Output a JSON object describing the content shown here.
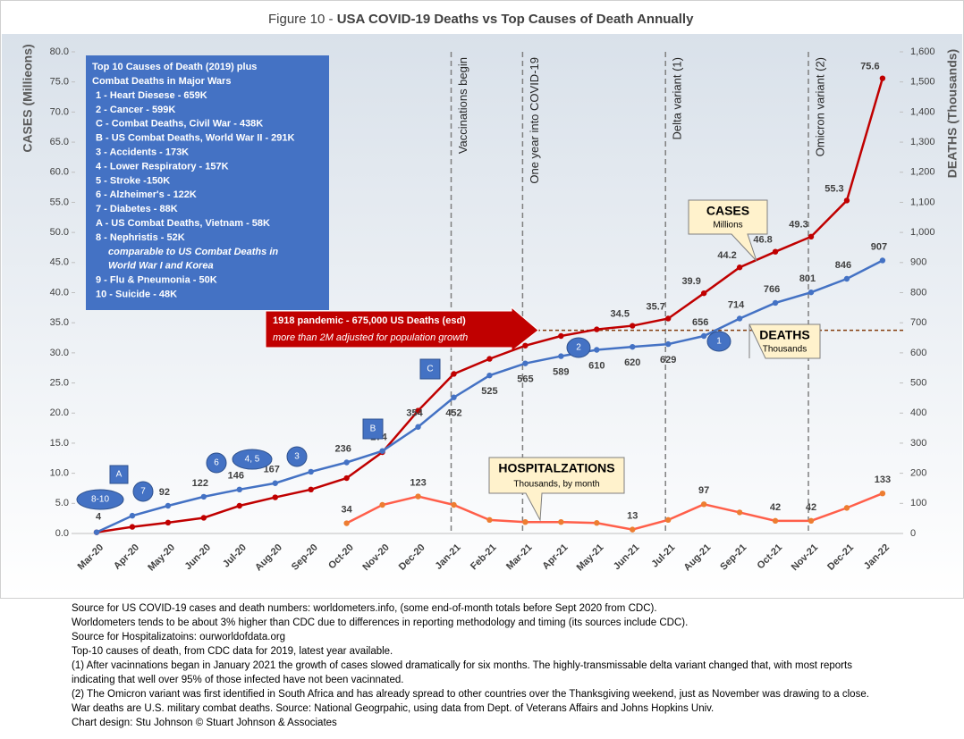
{
  "chart_data": {
    "type": "line",
    "title_label": "Figure 10 -",
    "title": "USA COVID-19 Deaths vs Top Causes of Death Annually",
    "y_label": "CASES (Millieons)",
    "y2_label": "DEATHS (Thousands)",
    "categories": [
      "Mar-20",
      "Apr-20",
      "May-20",
      "Jun-20",
      "Jul-20",
      "Aug-20",
      "Sep-20",
      "Oct-20",
      "Nov-20",
      "Dec-20",
      "Jan-21",
      "Feb-21",
      "Mar-21",
      "Apr-21",
      "May-21",
      "Jun-21",
      "Jul-21",
      "Aug-21",
      "Sep-21",
      "Oct-21",
      "Nov-21",
      "Dec-21",
      "Jan-22"
    ],
    "ylim": [
      0,
      80
    ],
    "yticks": [
      {
        "value": 0,
        "label": "0.0"
      },
      {
        "value": 5,
        "label": "5.0"
      },
      {
        "value": 10,
        "label": "10.0"
      },
      {
        "value": 15,
        "label": "15.0"
      },
      {
        "value": 20,
        "label": "20.0"
      },
      {
        "value": 25,
        "label": "25.0"
      },
      {
        "value": 30,
        "label": "30.0"
      },
      {
        "value": 35,
        "label": "35.0"
      },
      {
        "value": 40,
        "label": "40.0"
      },
      {
        "value": 45,
        "label": "45.0"
      },
      {
        "value": 50,
        "label": "50.0"
      },
      {
        "value": 55,
        "label": "55.0"
      },
      {
        "value": 60,
        "label": "60.0"
      },
      {
        "value": 65,
        "label": "65.0"
      },
      {
        "value": 70,
        "label": "70.0"
      },
      {
        "value": 75,
        "label": "75.0"
      },
      {
        "value": 80,
        "label": "80.0"
      }
    ],
    "y2lim": [
      0,
      1600
    ],
    "y2ticks": [
      0,
      100,
      200,
      300,
      400,
      500,
      600,
      700,
      800,
      900,
      {
        "value": 1000,
        "label": "1,000"
      },
      {
        "value": 1100,
        "label": "1,100"
      },
      {
        "value": 1200,
        "label": "1,200"
      },
      {
        "value": 1300,
        "label": "1,300"
      },
      {
        "value": 1400,
        "label": "1,400"
      },
      {
        "value": 1500,
        "label": "1,500"
      },
      {
        "value": 1600,
        "label": "1,600"
      }
    ],
    "series": [
      {
        "name": "CASES",
        "unit": "Millions",
        "color": "#c00000",
        "axis": "y",
        "values": [
          0.2,
          1.1,
          1.8,
          2.6,
          4.6,
          6.0,
          7.3,
          9.2,
          13.5,
          20.4,
          26.5,
          29.0,
          31.2,
          32.8,
          33.9,
          34.5,
          35.7,
          39.9,
          44.2,
          46.8,
          49.3,
          55.3,
          75.6
        ],
        "value_labels": [
          null,
          null,
          null,
          null,
          null,
          null,
          null,
          null,
          null,
          null,
          null,
          null,
          null,
          null,
          null,
          "34.5",
          "35.7",
          "39.9",
          "44.2",
          "46.8",
          "49.3",
          "55.3",
          "75.6"
        ]
      },
      {
        "name": "DEATHS",
        "unit": "Thousands",
        "color": "#4472c4",
        "axis": "y2",
        "values": [
          4,
          59,
          92,
          122,
          146,
          167,
          205,
          236,
          274,
          354,
          452,
          525,
          565,
          589,
          610,
          620,
          629,
          656,
          714,
          766,
          801,
          846,
          907
        ],
        "value_labels": [
          "4",
          null,
          "92",
          "122",
          "146",
          "167",
          null,
          "236",
          "274",
          "354",
          "452",
          "525",
          "565",
          "589",
          "610",
          "620",
          "629",
          "656",
          "714",
          "766",
          "801",
          "846",
          "907"
        ]
      },
      {
        "name": "HOSPITALZATIONS",
        "unit": "Thousands, by month",
        "color": "#ff5f4a",
        "marker_color": "#ed7d31",
        "axis": "y2",
        "values": [
          null,
          null,
          null,
          null,
          null,
          null,
          null,
          34,
          95,
          123,
          95,
          45,
          38,
          38,
          35,
          13,
          45,
          97,
          70,
          42,
          42,
          85,
          133
        ],
        "value_labels": [
          null,
          null,
          null,
          null,
          null,
          null,
          null,
          "34",
          null,
          "123",
          null,
          null,
          null,
          null,
          null,
          "13",
          null,
          "97",
          null,
          "42",
          "42",
          null,
          "133"
        ]
      }
    ],
    "events": [
      {
        "label": "Vaccinations begin",
        "at": "Jan-21"
      },
      {
        "label": "One year into COVID-19",
        "at": "Mar-21"
      },
      {
        "label": "Delta variant (1)",
        "at": "Jul-21"
      },
      {
        "label": "Omicron variant (2)",
        "at": "Nov-21"
      }
    ],
    "reference_line": {
      "value": 675,
      "axis": "y2",
      "label": "1918 pandemic - 675,000 US Deaths (esd)",
      "sublabel": "more than 2M adjusted for population growth"
    },
    "causes_box": {
      "title": [
        "Top 10 Causes of Death (2019) plus",
        "Combat Deaths in Major Wars"
      ],
      "items": [
        "1 - Heart Diesese - 659K",
        "2 - Cancer - 599K",
        "C - Combat Deaths, Civil War - 438K",
        "B - US Combat Deaths, World War II - 291K",
        "3 - Accidents - 173K",
        "4 - Lower Respiratory - 157K",
        "5 - Stroke -150K",
        "6 - Alzheimer's - 122K",
        "7 - Diabetes - 88K",
        "A - US Combat Deaths, Vietnam - 58K",
        "8 - Nephristis - 52K"
      ],
      "note": [
        "comparable to US Combat Deaths in",
        "World War I and Korea"
      ],
      "items_after": [
        "9 - Flu & Pneumonia - 50K",
        "10 - Suicide -  48K"
      ]
    },
    "markers": [
      "8-10",
      "7",
      "6",
      "4, 5",
      "3",
      "A",
      "B",
      "C",
      "2",
      "1"
    ]
  },
  "footer": [
    "Source for US COVID-19 cases and death numbers: worldometers.info, (some end-of-month totals before Sept 2020 from CDC).",
    "Worldometers tends to be about 3% higher than CDC due to differences in reporting methodology and timing (its sources include CDC).",
    "Source for Hospitalizatoins: ourworldofdata.org",
    "Top-10 causes of death, from CDC data for 2019, latest year available.",
    "(1) After vacinnations began in January 2021 the growth of cases slowed dramatically for six months. The highly-transmissable delta variant changed that, with most reports",
    "indicating that well over 95% of those infected have not been vacinnated.",
    "(2) The Omicron variant was first identified in South Africa and has already spread to other countries over the Thanksgiving weekend, just as November was drawing to a close.",
    "War deaths are U.S. military combat deaths.  Source: National Geogrpahic, using data from Dept. of Veterans Affairs and Johns Hopkins Univ.",
    "Chart design: Stu Johnson © Stuart Johnson & Associates"
  ]
}
